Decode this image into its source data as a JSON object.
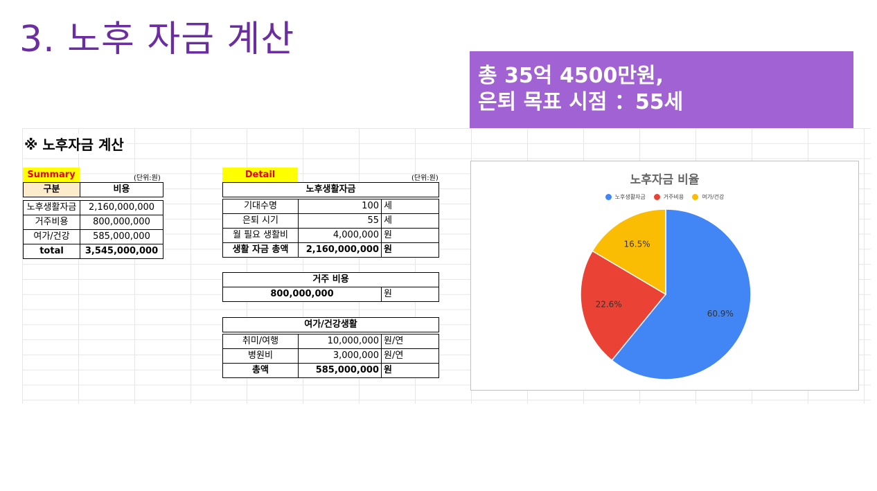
{
  "slide_title": "3. 노후 자금 계산",
  "callout": {
    "line1": "총 35억 4500만원,",
    "line2": "은퇴 목표 시점 ：55세"
  },
  "sheet_heading": "※ 노후자금 계산",
  "summary": {
    "tag": "Summary",
    "unit": "(단위:원)",
    "headers": [
      "구분",
      "비용"
    ],
    "rows": [
      [
        "노후생활자금",
        "2,160,000,000"
      ],
      [
        "거주비용",
        "800,000,000"
      ],
      [
        "여가/건강",
        "585,000,000"
      ]
    ],
    "total": [
      "total",
      "3,545,000,000"
    ]
  },
  "detail": {
    "tag": "Detail",
    "unit": "(단위:원)",
    "living": {
      "title": "노후생활자금",
      "rows": [
        [
          "기대수명",
          "100",
          "세"
        ],
        [
          "은퇴 시기",
          "55",
          "세"
        ],
        [
          "월 필요 생활비",
          "4,000,000",
          "원"
        ]
      ],
      "total": [
        "생활 자금 총액",
        "2,160,000,000",
        "원"
      ]
    },
    "housing": {
      "title": "거주 비용",
      "value": "800,000,000",
      "unit": "원"
    },
    "leisure": {
      "title": "여가/건강생활",
      "rows": [
        [
          "취미/여행",
          "10,000,000",
          "원/연"
        ],
        [
          "병원비",
          "3,000,000",
          "원/연"
        ]
      ],
      "total": [
        "총액",
        "585,000,000",
        "원"
      ]
    }
  },
  "chart_data": {
    "type": "pie",
    "title": "노후자금 비율",
    "legend_position": "top",
    "categories": [
      "노후생활자금",
      "거주비용",
      "여가/건강"
    ],
    "values": [
      60.9,
      22.6,
      16.5
    ],
    "labels": [
      "60.9%",
      "22.6%",
      "16.5%"
    ],
    "colors": [
      "#4285f4",
      "#ea4335",
      "#fbbc04"
    ]
  }
}
